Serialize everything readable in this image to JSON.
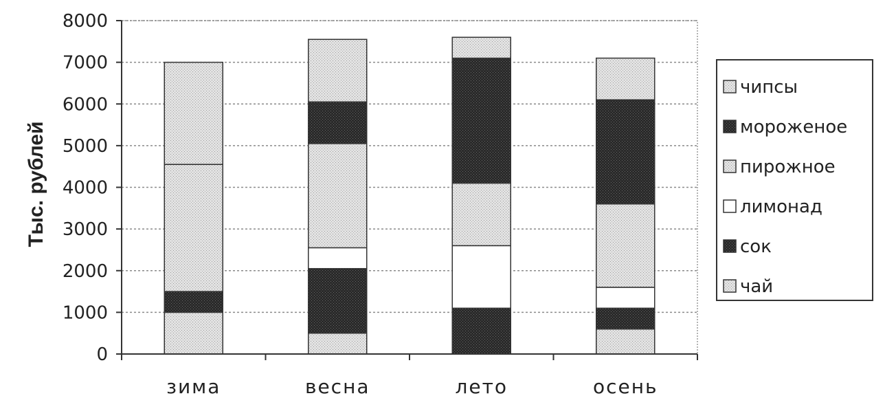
{
  "chart_data": {
    "type": "bar",
    "stacked": true,
    "title": "",
    "xlabel": "",
    "ylabel": "Тыс. рублей",
    "ylim": [
      0,
      8000
    ],
    "yticks": [
      0,
      1000,
      2000,
      3000,
      4000,
      5000,
      6000,
      7000,
      8000
    ],
    "grid": true,
    "legend_position": "right",
    "categories": [
      "зима",
      "весна",
      "лето",
      "осень"
    ],
    "series": [
      {
        "name": "чай",
        "values": [
          1000,
          500,
          0,
          600
        ],
        "color": "#c8c8c8",
        "pattern": "light"
      },
      {
        "name": "сок",
        "values": [
          500,
          1550,
          1100,
          500
        ],
        "color": "#3a3a3a",
        "pattern": "dark"
      },
      {
        "name": "лимонад",
        "values": [
          0,
          500,
          1500,
          500
        ],
        "color": "#ffffff",
        "pattern": "none"
      },
      {
        "name": "пирожное",
        "values": [
          3050,
          2500,
          1500,
          2000
        ],
        "color": "#dedede",
        "pattern": "light"
      },
      {
        "name": "мороженое",
        "values": [
          0,
          1000,
          3000,
          2500
        ],
        "color": "#111111",
        "pattern": "dark"
      },
      {
        "name": "чипсы",
        "values": [
          2450,
          1500,
          500,
          1000
        ],
        "color": "#d2d2d2",
        "pattern": "light"
      }
    ]
  }
}
